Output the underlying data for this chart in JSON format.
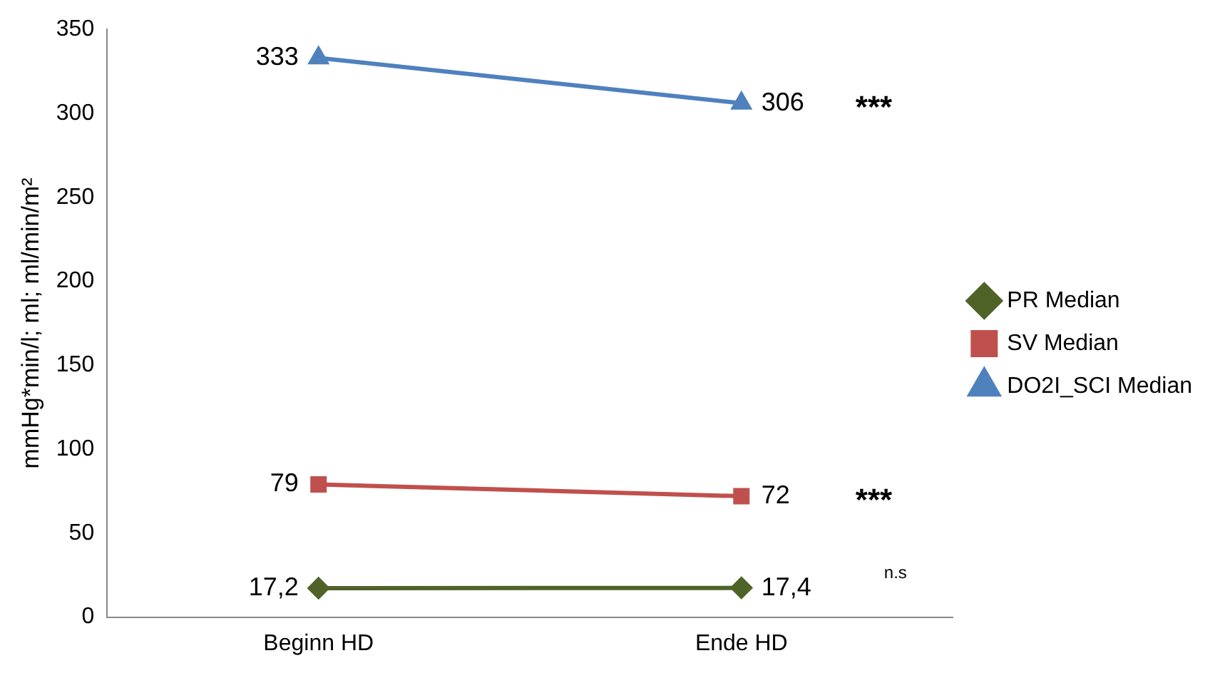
{
  "chart_data": {
    "type": "line",
    "ylabel": "mmHg*min/l; ml; ml/min/m²",
    "categories": [
      "Beginn HD",
      "Ende HD"
    ],
    "series": [
      {
        "name": "PR Median",
        "color": "#4f6228",
        "marker": "diamond",
        "values": [
          17.2,
          17.4
        ],
        "value_labels": [
          "17,2",
          "17,4"
        ]
      },
      {
        "name": "SV Median",
        "color": "#c0504d",
        "marker": "square",
        "values": [
          79,
          72
        ],
        "value_labels": [
          "79",
          "72"
        ]
      },
      {
        "name": "DO2I_SCI Median",
        "color": "#4f81bd",
        "marker": "triangle",
        "values": [
          333,
          306
        ],
        "value_labels": [
          "333",
          "306"
        ]
      }
    ],
    "ylim": [
      0,
      350
    ],
    "yticks": [
      0,
      50,
      100,
      150,
      200,
      250,
      300,
      350
    ],
    "grid": false,
    "legend": "right",
    "annotations": [
      "***",
      "***",
      "n.s"
    ]
  }
}
